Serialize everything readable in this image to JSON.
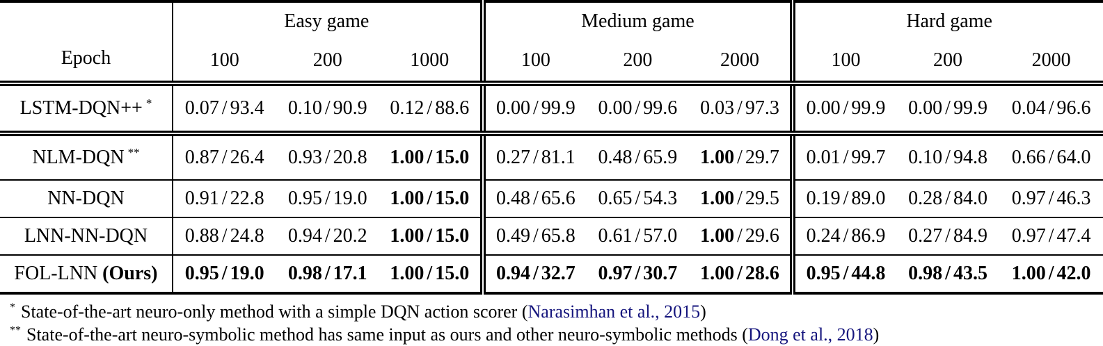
{
  "table": {
    "epoch_label": "Epoch",
    "groups": [
      {
        "label": "Easy game",
        "epochs": [
          "100",
          "200",
          "1000"
        ]
      },
      {
        "label": "Medium game",
        "epochs": [
          "100",
          "200",
          "2000"
        ]
      },
      {
        "label": "Hard game",
        "epochs": [
          "100",
          "200",
          "2000"
        ]
      }
    ],
    "rows": [
      {
        "method": "LSTM-DQN++",
        "marker": "*",
        "method_suffix": "",
        "cells": [
          {
            "v1": "0.07",
            "v2": "93.4",
            "bold": "none"
          },
          {
            "v1": "0.10",
            "v2": "90.9",
            "bold": "none"
          },
          {
            "v1": "0.12",
            "v2": "88.6",
            "bold": "none"
          },
          {
            "v1": "0.00",
            "v2": "99.9",
            "bold": "none"
          },
          {
            "v1": "0.00",
            "v2": "99.6",
            "bold": "none"
          },
          {
            "v1": "0.03",
            "v2": "97.3",
            "bold": "none"
          },
          {
            "v1": "0.00",
            "v2": "99.9",
            "bold": "none"
          },
          {
            "v1": "0.00",
            "v2": "99.9",
            "bold": "none"
          },
          {
            "v1": "0.04",
            "v2": "96.6",
            "bold": "none"
          }
        ]
      },
      {
        "method": "NLM-DQN",
        "marker": "**",
        "method_suffix": "",
        "cells": [
          {
            "v1": "0.87",
            "v2": "26.4",
            "bold": "none"
          },
          {
            "v1": "0.93",
            "v2": "20.8",
            "bold": "none"
          },
          {
            "v1": "1.00",
            "v2": "15.0",
            "bold": "all"
          },
          {
            "v1": "0.27",
            "v2": "81.1",
            "bold": "none"
          },
          {
            "v1": "0.48",
            "v2": "65.9",
            "bold": "none"
          },
          {
            "v1": "1.00",
            "v2": "29.7",
            "bold": "first"
          },
          {
            "v1": "0.01",
            "v2": "99.7",
            "bold": "none"
          },
          {
            "v1": "0.10",
            "v2": "94.8",
            "bold": "none"
          },
          {
            "v1": "0.66",
            "v2": "64.0",
            "bold": "none"
          }
        ]
      },
      {
        "method": "NN-DQN",
        "marker": "",
        "method_suffix": "",
        "cells": [
          {
            "v1": "0.91",
            "v2": "22.8",
            "bold": "none"
          },
          {
            "v1": "0.95",
            "v2": "19.0",
            "bold": "none"
          },
          {
            "v1": "1.00",
            "v2": "15.0",
            "bold": "all"
          },
          {
            "v1": "0.48",
            "v2": "65.6",
            "bold": "none"
          },
          {
            "v1": "0.65",
            "v2": "54.3",
            "bold": "none"
          },
          {
            "v1": "1.00",
            "v2": "29.5",
            "bold": "first"
          },
          {
            "v1": "0.19",
            "v2": "89.0",
            "bold": "none"
          },
          {
            "v1": "0.28",
            "v2": "84.0",
            "bold": "none"
          },
          {
            "v1": "0.97",
            "v2": "46.3",
            "bold": "none"
          }
        ]
      },
      {
        "method": "LNN-NN-DQN",
        "marker": "",
        "method_suffix": "",
        "cells": [
          {
            "v1": "0.88",
            "v2": "24.8",
            "bold": "none"
          },
          {
            "v1": "0.94",
            "v2": "20.2",
            "bold": "none"
          },
          {
            "v1": "1.00",
            "v2": "15.0",
            "bold": "all"
          },
          {
            "v1": "0.49",
            "v2": "65.8",
            "bold": "none"
          },
          {
            "v1": "0.61",
            "v2": "57.0",
            "bold": "none"
          },
          {
            "v1": "1.00",
            "v2": "29.6",
            "bold": "first"
          },
          {
            "v1": "0.24",
            "v2": "86.9",
            "bold": "none"
          },
          {
            "v1": "0.27",
            "v2": "84.9",
            "bold": "none"
          },
          {
            "v1": "0.97",
            "v2": "47.4",
            "bold": "none"
          }
        ]
      },
      {
        "method": "FOL-LNN",
        "marker": "",
        "method_suffix": "(Ours)",
        "cells": [
          {
            "v1": "0.95",
            "v2": "19.0",
            "bold": "all"
          },
          {
            "v1": "0.98",
            "v2": "17.1",
            "bold": "all"
          },
          {
            "v1": "1.00",
            "v2": "15.0",
            "bold": "all"
          },
          {
            "v1": "0.94",
            "v2": "32.7",
            "bold": "all"
          },
          {
            "v1": "0.97",
            "v2": "30.7",
            "bold": "all"
          },
          {
            "v1": "1.00",
            "v2": "28.6",
            "bold": "all"
          },
          {
            "v1": "0.95",
            "v2": "44.8",
            "bold": "all"
          },
          {
            "v1": "0.98",
            "v2": "43.5",
            "bold": "all"
          },
          {
            "v1": "1.00",
            "v2": "42.0",
            "bold": "all"
          }
        ]
      }
    ]
  },
  "footnotes": [
    {
      "marker": "*",
      "text": "State-of-the-art neuro-only method with a simple DQN action scorer (",
      "citation": "Narasimhan et al., 2015",
      "suffix": ")"
    },
    {
      "marker": "**",
      "text": "State-of-the-art neuro-symbolic method has same input as ours and other neuro-symbolic methods (",
      "citation": "Dong et al., 2018",
      "suffix": ")"
    }
  ],
  "colors": {
    "citation": "#15157d",
    "text": "#000000",
    "background": "#ffffff"
  }
}
